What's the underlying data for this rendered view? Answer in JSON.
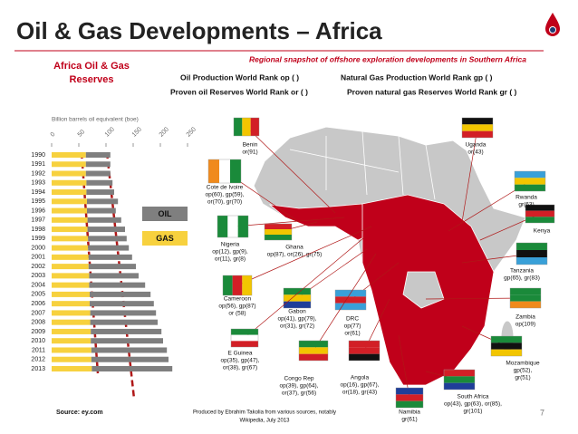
{
  "header": {
    "title": "Oil & Gas Developments – Africa",
    "subtitle": "Regional snapshot of offshore exploration developments in Southern Africa"
  },
  "rank_key": [
    "Oil  Production  World Rank op ( )",
    "Natural Gas Production  World Rank gp ( )",
    "Proven oil Reserves World Rank or ( )",
    "Proven natural gas Reserves World Rank gr ( )"
  ],
  "chart_data": {
    "type": "bar",
    "orientation": "horizontal",
    "stacked": true,
    "title": "Africa Oil & Gas Reserves",
    "x_label": "Billion barrels oil equivalent (boe)",
    "categories": [
      "1990",
      "1991",
      "1992",
      "1993",
      "1994",
      "1995",
      "1996",
      "1997",
      "1998",
      "1999",
      "2000",
      "2001",
      "2002",
      "2003",
      "2004",
      "2005",
      "2006",
      "2007",
      "2008",
      "2009",
      "2010",
      "2011",
      "2012",
      "2013"
    ],
    "series": [
      {
        "name": "GAS",
        "color": "#f7d13e",
        "values": [
          63,
          63,
          63,
          64,
          64,
          65,
          65,
          66,
          66,
          67,
          67,
          68,
          68,
          69,
          69,
          70,
          70,
          71,
          71,
          72,
          72,
          73,
          73,
          74
        ]
      },
      {
        "name": "OIL",
        "color": "#7f7f7f",
        "values": [
          45,
          45,
          45,
          48,
          51,
          57,
          53,
          62,
          69,
          71,
          75,
          80,
          87,
          91,
          103,
          112,
          118,
          121,
          124,
          130,
          133,
          139,
          142,
          148
        ]
      }
    ],
    "xlim": [
      0,
      250
    ],
    "xticks": [
      0,
      50,
      100,
      150,
      200,
      250
    ]
  },
  "countries": [
    {
      "name": "Benin",
      "ranks": [
        "or(91)"
      ]
    },
    {
      "name": "Cote de Ivoire",
      "ranks": [
        "op(60), gp(59),",
        "or(70), gr(70)"
      ]
    },
    {
      "name": "Nigeria",
      "ranks": [
        "op(12), gp(9),",
        "or(11), gr(8)"
      ]
    },
    {
      "name": "Ghana",
      "ranks": [
        "op(87), or(26), gr(75)"
      ]
    },
    {
      "name": "Cameroon",
      "ranks": [
        "op(56), gp(87)",
        "or (58)"
      ]
    },
    {
      "name": "Gabon",
      "ranks": [
        "op(41), gp(79),",
        "or(31), gr(72)"
      ]
    },
    {
      "name": "DRC",
      "ranks": [
        "op(77)",
        "or(61)"
      ]
    },
    {
      "name": "E Guinea",
      "ranks": [
        "op(35), gp(47),",
        "or(38), gr(67)"
      ]
    },
    {
      "name": "Congo Rep",
      "ranks": [
        "op(39), gp(64),",
        "or(37), gr(56)"
      ]
    },
    {
      "name": "Angola",
      "ranks": [
        "op(16), gp(67),",
        "or(18), gr(43)"
      ]
    },
    {
      "name": "Namibia",
      "ranks": [
        "gr(61)"
      ]
    },
    {
      "name": "South Africa",
      "ranks": [
        "op(43), gp(63), or(85),",
        "gr(101)"
      ]
    },
    {
      "name": "Mozambique",
      "ranks": [
        "gp(52),",
        "gr(51)"
      ]
    },
    {
      "name": "Zambia",
      "ranks": [
        "op(109)"
      ]
    },
    {
      "name": "Tanzania",
      "ranks": [
        "gp(65), gr(83)"
      ]
    },
    {
      "name": "Kenya",
      "ranks": []
    },
    {
      "name": "Rwanda",
      "ranks": [
        "gr(63)"
      ]
    },
    {
      "name": "Uganda",
      "ranks": [
        "or(43)"
      ]
    }
  ],
  "footer": {
    "source": "Source: ey.com",
    "credit": [
      "Produced by Ebrahim Takolia from various sources, notably",
      "Wikipedia, July 2013"
    ],
    "page": "7"
  }
}
